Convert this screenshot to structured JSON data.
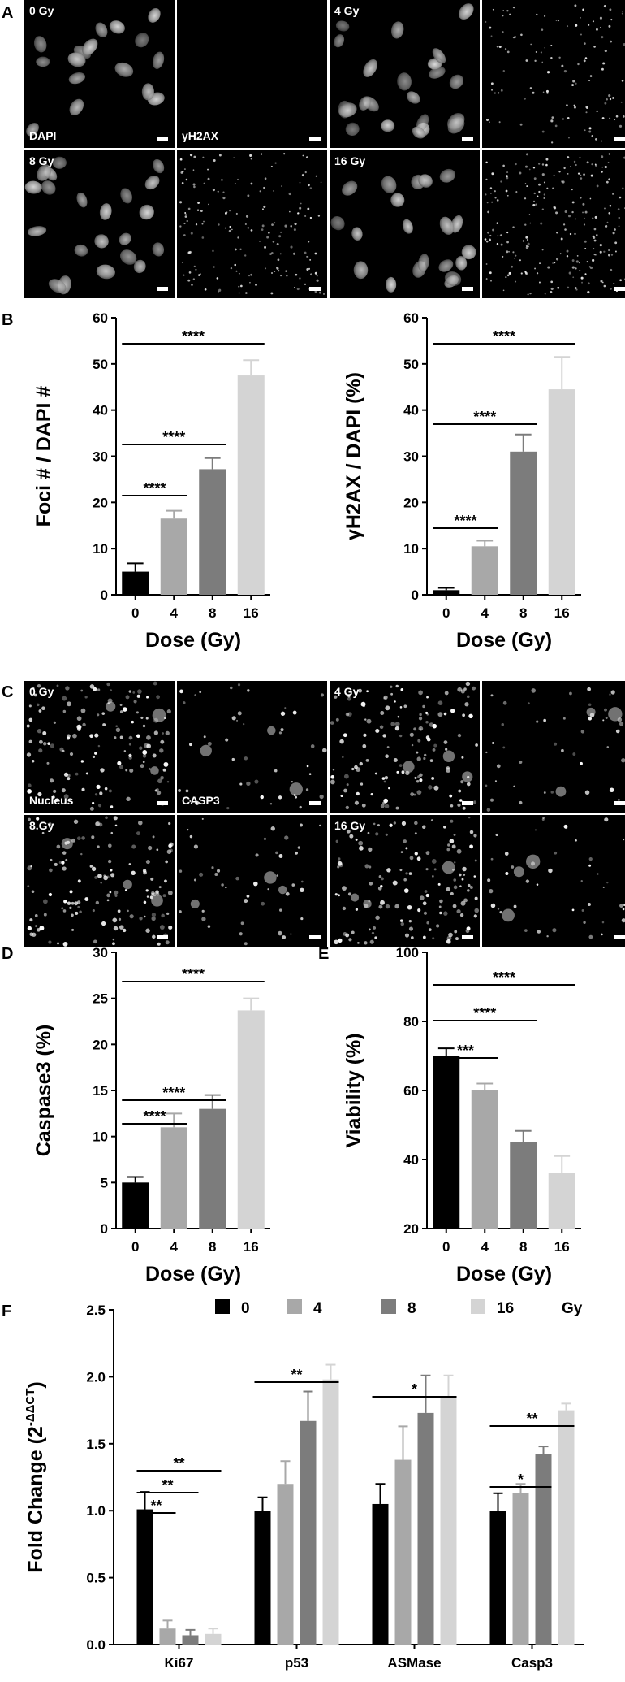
{
  "panel_letters": [
    "A",
    "B",
    "C",
    "D",
    "E",
    "F"
  ],
  "micrographs": {
    "A": {
      "labels": [
        {
          "text": "0 Gy",
          "tile": 0,
          "pos": "top-left"
        },
        {
          "text": "DAPI",
          "tile": 0,
          "pos": "bottom-left"
        },
        {
          "text": "γH2AX",
          "tile": 1,
          "pos": "bottom-left"
        },
        {
          "text": "4 Gy",
          "tile": 2,
          "pos": "top-left"
        },
        {
          "text": "8 Gy",
          "tile": 4,
          "pos": "top-left"
        },
        {
          "text": "16 Gy",
          "tile": 6,
          "pos": "top-left"
        }
      ]
    },
    "C": {
      "labels": [
        {
          "text": "0 Gy",
          "tile": 0,
          "pos": "top-left"
        },
        {
          "text": "Nucleus",
          "tile": 0,
          "pos": "bottom-left"
        },
        {
          "text": "CASP3",
          "tile": 1,
          "pos": "bottom-left"
        },
        {
          "text": "4 Gy",
          "tile": 2,
          "pos": "top-left"
        },
        {
          "text": "8 Gy",
          "tile": 4,
          "pos": "top-left"
        },
        {
          "text": "16 Gy",
          "tile": 6,
          "pos": "top-left"
        }
      ]
    }
  },
  "colors": {
    "dose_0": "#000000",
    "dose_4": "#a8a8a8",
    "dose_8": "#7c7c7c",
    "dose_16": "#d4d4d4"
  },
  "chart_data": [
    {
      "panel": "B-left",
      "type": "bar",
      "categories": [
        "0",
        "4",
        "8",
        "16"
      ],
      "values": [
        5,
        16.5,
        27.2,
        47.5
      ],
      "errors": [
        1.8,
        1.7,
        2.4,
        3.3
      ],
      "xlabel": "Dose (Gy)",
      "ylabel": "Foci # / DAPI #",
      "ylim": [
        0,
        60
      ],
      "yticks": [
        "0",
        "10",
        "20",
        "30",
        "40",
        "50",
        "60"
      ],
      "significance": [
        {
          "from": 0,
          "to": 1,
          "label": "****"
        },
        {
          "from": 0,
          "to": 2,
          "label": "****"
        },
        {
          "from": 0,
          "to": 3,
          "label": "****"
        }
      ]
    },
    {
      "panel": "B-right",
      "type": "bar",
      "categories": [
        "0",
        "4",
        "8",
        "16"
      ],
      "values": [
        1,
        10.5,
        31,
        44.5
      ],
      "errors": [
        0.5,
        1.2,
        3.7,
        7
      ],
      "xlabel": "Dose (Gy)",
      "ylabel": "γH2AX / DAPI (%)",
      "ylim": [
        0,
        60
      ],
      "yticks": [
        "0",
        "10",
        "20",
        "30",
        "40",
        "50",
        "60"
      ],
      "significance": [
        {
          "from": 0,
          "to": 1,
          "label": "****"
        },
        {
          "from": 0,
          "to": 2,
          "label": "****"
        },
        {
          "from": 0,
          "to": 3,
          "label": "****"
        }
      ]
    },
    {
      "panel": "D",
      "type": "bar",
      "categories": [
        "0",
        "4",
        "8",
        "16"
      ],
      "values": [
        5,
        11,
        13,
        23.7
      ],
      "errors": [
        0.6,
        1.5,
        1.5,
        1.3
      ],
      "xlabel": "Dose (Gy)",
      "ylabel": "Caspase3 (%)",
      "ylim": [
        0,
        30
      ],
      "yticks": [
        "0",
        "5",
        "10",
        "15",
        "20",
        "25",
        "30"
      ],
      "significance": [
        {
          "from": 0,
          "to": 1,
          "label": "****"
        },
        {
          "from": 0,
          "to": 2,
          "label": "****"
        },
        {
          "from": 0,
          "to": 3,
          "label": "****"
        }
      ]
    },
    {
      "panel": "E",
      "type": "bar",
      "categories": [
        "0",
        "4",
        "8",
        "16"
      ],
      "values": [
        70,
        60,
        45,
        36
      ],
      "errors": [
        2.2,
        2,
        3.3,
        5
      ],
      "xlabel": "Dose (Gy)",
      "ylabel": "Viability (%)",
      "ylim": [
        20,
        100
      ],
      "yticks": [
        "20",
        "40",
        "60",
        "80",
        "100"
      ],
      "significance": [
        {
          "from": 0,
          "to": 1,
          "label": "***"
        },
        {
          "from": 0,
          "to": 2,
          "label": "****"
        },
        {
          "from": 0,
          "to": 3,
          "label": "****"
        }
      ]
    },
    {
      "panel": "F",
      "type": "bar",
      "categories": [
        "Ki67",
        "p53",
        "ASMase",
        "Casp3"
      ],
      "series": [
        {
          "name": "0",
          "values": [
            1.01,
            1.0,
            1.05,
            1.0
          ],
          "errors": [
            0.13,
            0.1,
            0.15,
            0.13
          ]
        },
        {
          "name": "4",
          "values": [
            0.12,
            1.2,
            1.38,
            1.13
          ],
          "errors": [
            0.06,
            0.17,
            0.25,
            0.07
          ]
        },
        {
          "name": "8",
          "values": [
            0.07,
            1.67,
            1.73,
            1.42
          ],
          "errors": [
            0.04,
            0.22,
            0.28,
            0.06
          ]
        },
        {
          "name": "16",
          "values": [
            0.08,
            1.98,
            1.85,
            1.75
          ],
          "errors": [
            0.04,
            0.11,
            0.16,
            0.05
          ]
        }
      ],
      "legend_unit": "Gy",
      "legend_position": "top",
      "ylabel_main": "Fold Change (2",
      "ylabel_sup": "-ΔΔCT",
      "ylabel_end": ")",
      "ylim": [
        0,
        2.5
      ],
      "yticks": [
        "0.0",
        "0.5",
        "1.0",
        "1.5",
        "2.0",
        "2.5"
      ],
      "significance": [
        {
          "group": 0,
          "from": 0,
          "to": 1,
          "label": "**"
        },
        {
          "group": 0,
          "from": 0,
          "to": 2,
          "label": "**"
        },
        {
          "group": 0,
          "from": 0,
          "to": 3,
          "label": "**"
        },
        {
          "group": 1,
          "from": 0,
          "to": 3,
          "label": "**"
        },
        {
          "group": 2,
          "from": 0,
          "to": 3,
          "label": "*"
        },
        {
          "group": 3,
          "from": 0,
          "to": 2,
          "label": "*"
        },
        {
          "group": 3,
          "from": 0,
          "to": 3,
          "label": "**"
        }
      ]
    }
  ]
}
